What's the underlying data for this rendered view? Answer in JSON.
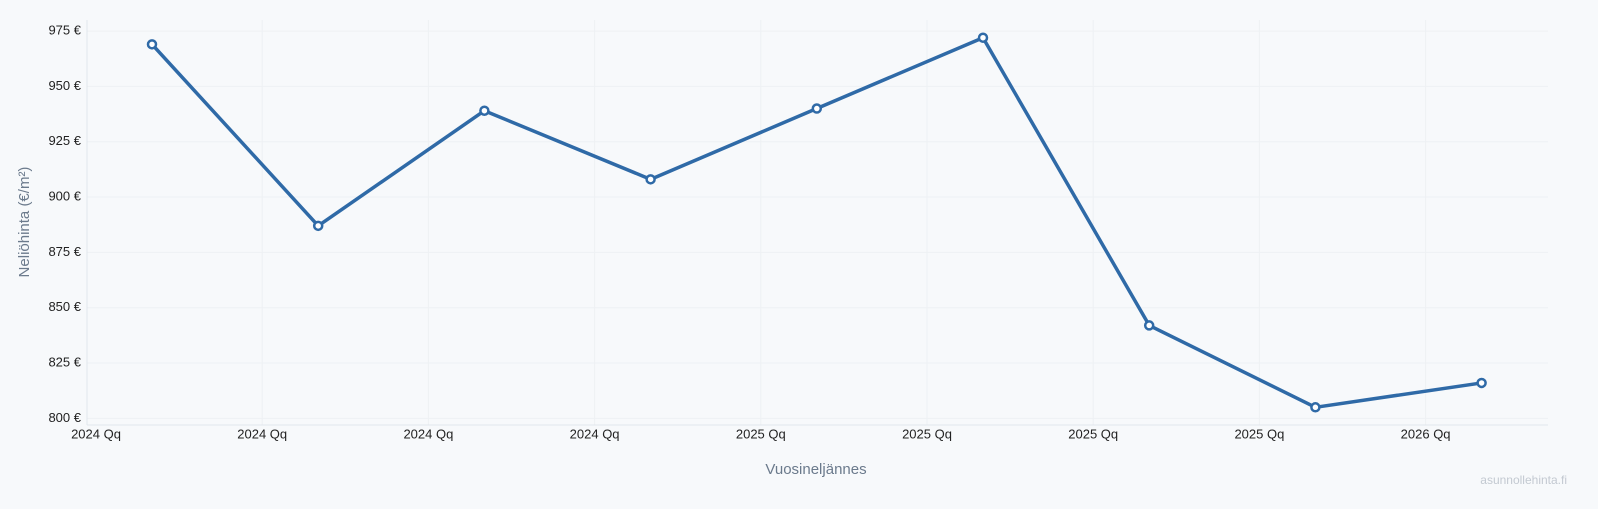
{
  "chart_data": {
    "type": "line",
    "x_label": "Vuosineljännes",
    "y_label": "Neliöhinta (€/m²)",
    "watermark": "asunnollehinta.fi",
    "categories": [
      "2024 Qq",
      "2024 Qq",
      "2024 Qq",
      "2024 Qq",
      "2025 Qq",
      "2025 Qq",
      "2025 Qq",
      "2025 Qq",
      "2026 Qq"
    ],
    "series": [
      {
        "name": "Neliöhinta",
        "color": "#2f6aa7",
        "values": [
          969,
          887,
          939,
          908,
          940,
          972,
          842,
          805,
          816
        ]
      }
    ],
    "ylim": [
      797,
      980
    ],
    "yticks": [
      {
        "value": 800,
        "label": "800 €"
      },
      {
        "value": 825,
        "label": "825 €"
      },
      {
        "value": 850,
        "label": "850 €"
      },
      {
        "value": 875,
        "label": "875 €"
      },
      {
        "value": 900,
        "label": "900 €"
      },
      {
        "value": 925,
        "label": "925 €"
      },
      {
        "value": 950,
        "label": "950 €"
      },
      {
        "value": 975,
        "label": "975 €"
      }
    ],
    "grid": true
  }
}
